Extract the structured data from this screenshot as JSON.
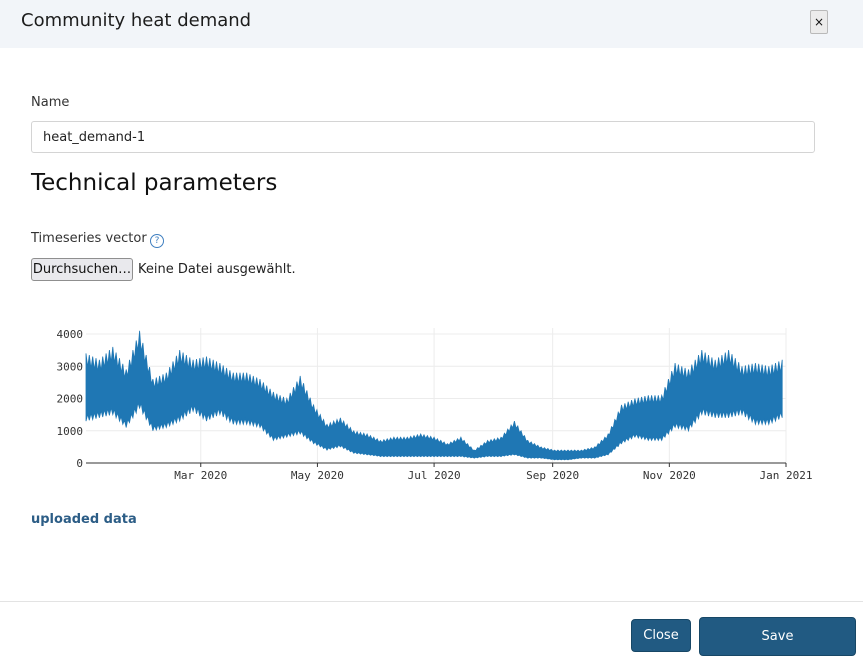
{
  "modal": {
    "title": "Community heat demand",
    "close_label": "×"
  },
  "form": {
    "name_label": "Name",
    "name_value": "heat_demand-1",
    "section_title": "Technical parameters",
    "timeseries_label": "Timeseries vector",
    "help_icon": "question-circle-icon",
    "file_button_label": "Durchsuchen…",
    "file_status": "Keine Datei ausgewählt."
  },
  "uploaded_link": "uploaded data",
  "footer": {
    "close_label": "Close",
    "save_label": "Save"
  },
  "colors": {
    "series": "#1f77b4",
    "header_bg": "#f2f5f9",
    "button_primary": "#215a82"
  },
  "chart_data": {
    "type": "area",
    "title": "",
    "xlabel": "",
    "ylabel": "",
    "x_range": [
      "2020-01-01",
      "2021-01-01"
    ],
    "ylim": [
      0,
      4000
    ],
    "y_ticks": [
      0,
      1000,
      2000,
      3000,
      4000
    ],
    "x_ticks": [
      "Mar 2020",
      "May 2020",
      "Jul 2020",
      "Sep 2020",
      "Nov 2020",
      "Jan 2021"
    ],
    "grid": true,
    "legend": "none",
    "series": [
      {
        "x": [
          "2020-01-01",
          "2020-01-08",
          "2020-01-15",
          "2020-01-22",
          "2020-01-29",
          "2020-02-05",
          "2020-02-12",
          "2020-02-19",
          "2020-02-26",
          "2020-03-04",
          "2020-03-11",
          "2020-03-18",
          "2020-03-25",
          "2020-04-01",
          "2020-04-08",
          "2020-04-15",
          "2020-04-22",
          "2020-04-29",
          "2020-05-06",
          "2020-05-13",
          "2020-05-20",
          "2020-05-27",
          "2020-06-03",
          "2020-06-10",
          "2020-06-17",
          "2020-06-24",
          "2020-07-01",
          "2020-07-08",
          "2020-07-15",
          "2020-07-22",
          "2020-07-29",
          "2020-08-05",
          "2020-08-12",
          "2020-08-19",
          "2020-08-26",
          "2020-09-02",
          "2020-09-09",
          "2020-09-16",
          "2020-09-23",
          "2020-09-30",
          "2020-10-07",
          "2020-10-14",
          "2020-10-21",
          "2020-10-28",
          "2020-11-04",
          "2020-11-11",
          "2020-11-18",
          "2020-11-25",
          "2020-12-02",
          "2020-12-09",
          "2020-12-16",
          "2020-12-23",
          "2020-12-30"
        ],
        "min": [
          1300,
          1400,
          1500,
          1100,
          1700,
          1000,
          1100,
          1300,
          1600,
          1300,
          1500,
          1200,
          1200,
          1100,
          700,
          800,
          900,
          600,
          400,
          500,
          300,
          250,
          200,
          200,
          200,
          200,
          200,
          200,
          200,
          150,
          200,
          200,
          250,
          150,
          150,
          100,
          100,
          150,
          150,
          250,
          600,
          800,
          700,
          700,
          1100,
          1000,
          1500,
          1400,
          1400,
          1500,
          1200,
          1200,
          1400
        ],
        "max": [
          3400,
          3200,
          3600,
          2900,
          4100,
          2600,
          2800,
          3500,
          3200,
          3300,
          3100,
          2800,
          2800,
          2600,
          2200,
          2000,
          2700,
          1800,
          1200,
          1400,
          1000,
          900,
          700,
          800,
          800,
          900,
          800,
          600,
          800,
          400,
          700,
          800,
          1300,
          700,
          500,
          400,
          400,
          400,
          500,
          900,
          1800,
          2000,
          2100,
          2100,
          3100,
          2900,
          3500,
          3200,
          3500,
          3000,
          3100,
          3000,
          3200
        ]
      }
    ]
  }
}
